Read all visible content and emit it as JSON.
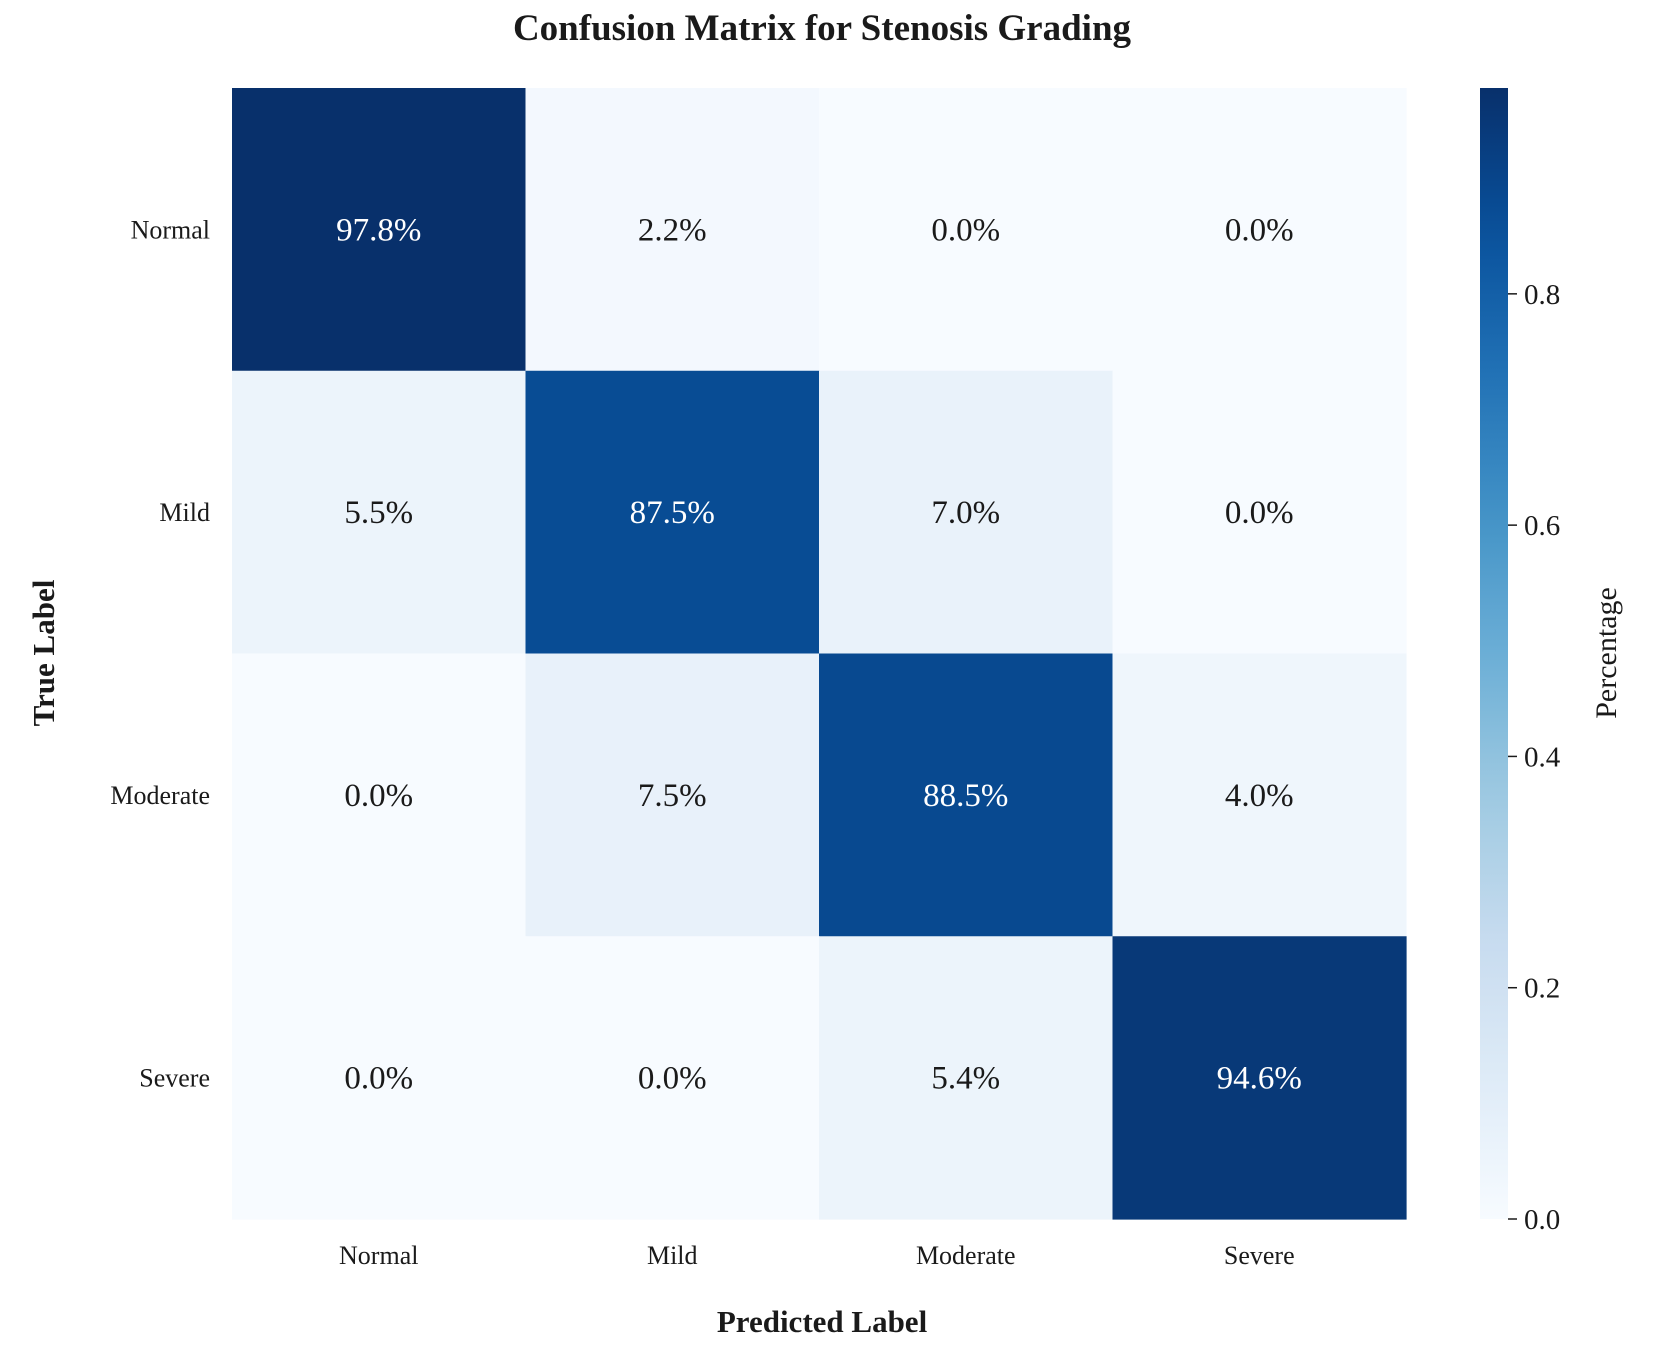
{
  "chart_data": {
    "type": "heatmap",
    "title": "Confusion Matrix for Stenosis Grading",
    "xlabel": "Predicted Label",
    "ylabel": "True Label",
    "x_categories": [
      "Normal",
      "Mild",
      "Moderate",
      "Severe"
    ],
    "y_categories": [
      "Normal",
      "Mild",
      "Moderate",
      "Severe"
    ],
    "values": [
      [
        0.978,
        0.022,
        0.0,
        0.0
      ],
      [
        0.055,
        0.875,
        0.07,
        0.0
      ],
      [
        0.0,
        0.075,
        0.885,
        0.04
      ],
      [
        0.0,
        0.0,
        0.054,
        0.946
      ]
    ],
    "annotations": [
      [
        "97.8%",
        "2.2%",
        "0.0%",
        "0.0%"
      ],
      [
        "5.5%",
        "87.5%",
        "7.0%",
        "0.0%"
      ],
      [
        "0.0%",
        "7.5%",
        "88.5%",
        "4.0%"
      ],
      [
        "0.0%",
        "0.0%",
        "5.4%",
        "94.6%"
      ]
    ],
    "colormap": "Blues",
    "colorbar": {
      "label": "Percentage",
      "range": [
        0.0,
        0.978
      ],
      "ticks": [
        0.0,
        0.2,
        0.4,
        0.6,
        0.8
      ],
      "tick_labels": [
        "0.0",
        "0.2",
        "0.4",
        "0.6",
        "0.8"
      ]
    },
    "colors": {
      "text_dark": "#1a1a1a",
      "text_light": "#ffffff"
    }
  }
}
